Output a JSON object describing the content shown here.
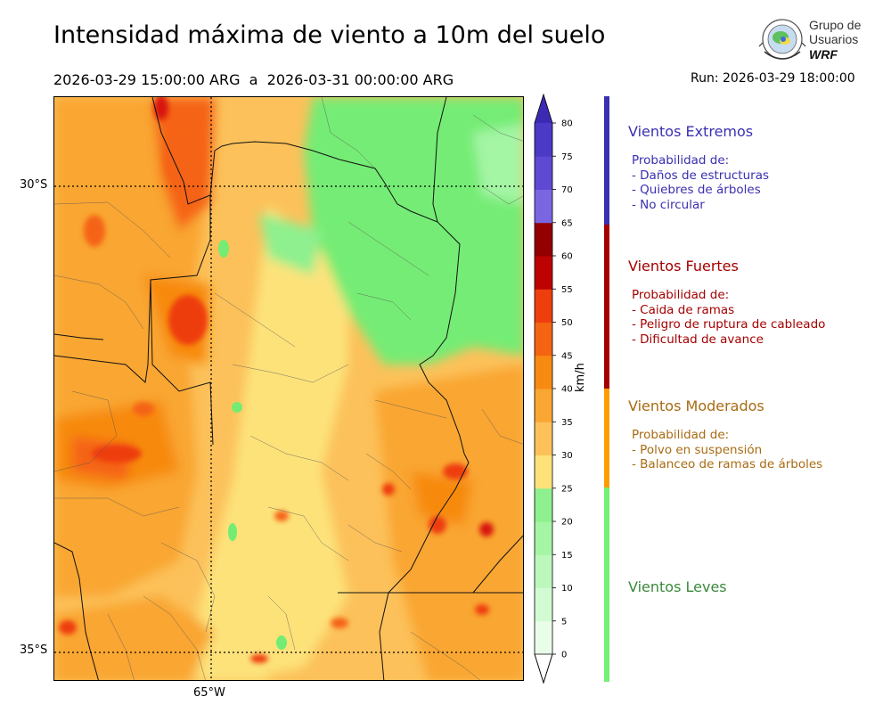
{
  "header": {
    "title": "Intensidad máxima de viento a 10m del suelo",
    "start": "2026-03-29 15:00:00 ARG",
    "separator": "a",
    "end": "2026-03-31 00:00:00 ARG",
    "run": "Run: 2026-03-29 18:00:00"
  },
  "logo": {
    "line1": "Grupo de",
    "line2": "Usuarios",
    "line3": "WRF"
  },
  "map": {
    "lat_labels": [
      "30°S",
      "35°S"
    ],
    "lon_labels": [
      "65°W"
    ]
  },
  "colorbar": {
    "unit": "km/h",
    "ticks": [
      "0",
      "5",
      "10",
      "15",
      "20",
      "25",
      "30",
      "35",
      "40",
      "45",
      "50",
      "55",
      "60",
      "65",
      "70",
      "75",
      "80"
    ],
    "colors": [
      "#e9fde9",
      "#d3fbd3",
      "#bcf8bc",
      "#a4f5a4",
      "#8ef08e",
      "#74ec74",
      "#fde27a",
      "#fcc15a",
      "#f9a632",
      "#f78a10",
      "#f56412",
      "#ee3e0e",
      "#d81909",
      "#bc0202",
      "#a60101",
      "#920000",
      "#7a66e0",
      "#5e4ad2",
      "#4a3ac6",
      "#3c2eb6"
    ],
    "top_color": "#3c2ab2",
    "bottom_color": "#ffffff"
  },
  "categories": [
    {
      "title": "Vientos Extremos",
      "color": "#3a2fb0",
      "lines": [
        "Probabilidad de:",
        "- Daños de estructuras",
        "- Quiebres de árboles",
        "- No circular"
      ]
    },
    {
      "title": "Vientos Fuertes",
      "color": "#a40000",
      "lines": [
        "Probabilidad de:",
        "- Caida de ramas",
        "- Peligro de ruptura de cableado",
        "- Dificultad de avance"
      ]
    },
    {
      "title": "Vientos Moderados",
      "color": "#a86b12",
      "lines": [
        "Probabilidad de:",
        "- Polvo en suspensión",
        "- Balanceo de ramas de árboles"
      ]
    },
    {
      "title": "Vientos Leves",
      "color": "#3b8a3b",
      "lines": []
    }
  ],
  "category_bar_colors": [
    "#3a2fb0",
    "#a40000",
    "#ff9d00",
    "#74f074"
  ]
}
